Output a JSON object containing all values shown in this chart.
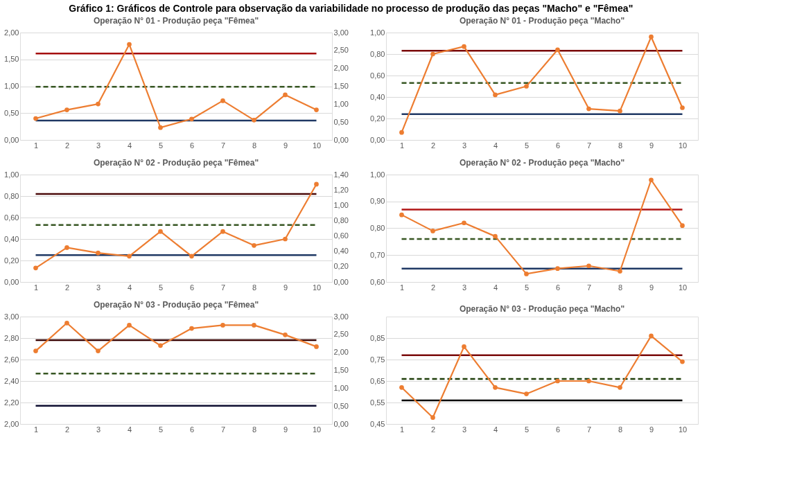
{
  "chart_data": [
    {
      "type": "line",
      "title": "Operação N° 01 - Produção peça \"Fêmea\"",
      "annotations": [
        "Gráfico 1: Gráficos de Controle para observação da variabilidade no processo de produção das peças \"Macho\" e \"Fêmea\""
      ],
      "categories": [
        "1",
        "2",
        "3",
        "4",
        "5",
        "6",
        "7",
        "8",
        "9",
        "10"
      ],
      "series": [
        {
          "color": "#ed7d31",
          "values": [
            0.4,
            0.56,
            0.67,
            1.78,
            0.23,
            0.39,
            0.73,
            0.37,
            0.84,
            0.56
          ]
        }
      ],
      "marker": "circle",
      "grid": "y",
      "ylim": [
        0,
        2
      ],
      "yticks": [
        {
          "value": 0,
          "label": "0,00"
        },
        {
          "value": 0.5,
          "label": "0,50"
        },
        {
          "value": 1,
          "label": "1,00"
        },
        {
          "value": 1.5,
          "label": "1,50"
        },
        {
          "value": 2,
          "label": "2,00"
        }
      ],
      "y2lim": [
        0,
        3
      ],
      "y2ticks": [
        {
          "value": 0,
          "label": "0,00"
        },
        {
          "value": 0.5,
          "label": "0,50"
        },
        {
          "value": 1,
          "label": "1,00"
        },
        {
          "value": 1.5,
          "label": "1,50"
        },
        {
          "value": 2,
          "label": "2,00"
        },
        {
          "value": 2.5,
          "label": "2,50"
        },
        {
          "value": 3,
          "label": "3,00"
        }
      ],
      "ref_lines": [
        {
          "axis": "y",
          "value": 1.61,
          "color": "#a50f0f",
          "line_style": "solid"
        },
        {
          "axis": "y",
          "value": 0.99,
          "color": "#375623",
          "line_style": "dashed"
        },
        {
          "axis": "y",
          "value": 0.36,
          "color": "#1f3864",
          "line_style": "solid"
        }
      ]
    },
    {
      "type": "line",
      "title": "Operação N° 01 - Produção peça \"Macho\"",
      "categories": [
        "1",
        "2",
        "3",
        "4",
        "5",
        "6",
        "7",
        "8",
        "9",
        "10"
      ],
      "series": [
        {
          "color": "#ed7d31",
          "values": [
            0.07,
            0.8,
            0.87,
            0.42,
            0.5,
            0.84,
            0.29,
            0.27,
            0.96,
            0.3
          ]
        }
      ],
      "marker": "circle",
      "grid": "y",
      "ylim": [
        0,
        1
      ],
      "yticks": [
        {
          "value": 0,
          "label": "0,00"
        },
        {
          "value": 0.2,
          "label": "0,20"
        },
        {
          "value": 0.4,
          "label": "0,40"
        },
        {
          "value": 0.6,
          "label": "0,60"
        },
        {
          "value": 0.8,
          "label": "0,80"
        },
        {
          "value": 1,
          "label": "1,00"
        }
      ],
      "ref_lines": [
        {
          "axis": "y",
          "value": 0.83,
          "color": "#7a0a0a",
          "line_style": "solid"
        },
        {
          "axis": "y",
          "value": 0.53,
          "color": "#375623",
          "line_style": "dashed"
        },
        {
          "axis": "y",
          "value": 0.24,
          "color": "#1f3864",
          "line_style": "solid"
        }
      ]
    },
    {
      "type": "line",
      "title": "Operação N° 02 - Produção peça \"Fêmea\"",
      "categories": [
        "1",
        "2",
        "3",
        "4",
        "5",
        "6",
        "7",
        "8",
        "9",
        "10"
      ],
      "series": [
        {
          "color": "#ed7d31",
          "values": [
            0.13,
            0.32,
            0.27,
            0.24,
            0.47,
            0.24,
            0.47,
            0.34,
            0.4,
            0.91
          ]
        }
      ],
      "marker": "circle",
      "grid": "y",
      "ylim": [
        0,
        1
      ],
      "yticks": [
        {
          "value": 0,
          "label": "0,00"
        },
        {
          "value": 0.2,
          "label": "0,20"
        },
        {
          "value": 0.4,
          "label": "0,40"
        },
        {
          "value": 0.6,
          "label": "0,60"
        },
        {
          "value": 0.8,
          "label": "0,80"
        },
        {
          "value": 1,
          "label": "1,00"
        }
      ],
      "y2lim": [
        0,
        1.4
      ],
      "y2ticks": [
        {
          "value": 0,
          "label": "0,00"
        },
        {
          "value": 0.2,
          "label": "0,20"
        },
        {
          "value": 0.4,
          "label": "0,40"
        },
        {
          "value": 0.6,
          "label": "0,60"
        },
        {
          "value": 0.8,
          "label": "0,80"
        },
        {
          "value": 1,
          "label": "1,00"
        },
        {
          "value": 1.2,
          "label": "1,20"
        },
        {
          "value": 1.4,
          "label": "1,40"
        }
      ],
      "ref_lines": [
        {
          "axis": "y",
          "value": 0.82,
          "color": "#4a0a0a",
          "line_style": "solid"
        },
        {
          "axis": "y",
          "value": 0.53,
          "color": "#375623",
          "line_style": "dashed"
        },
        {
          "axis": "y",
          "value": 0.25,
          "color": "#1f3864",
          "line_style": "solid"
        }
      ]
    },
    {
      "type": "line",
      "title": "Operação N° 02 - Produção peça \"Macho\"",
      "categories": [
        "1",
        "2",
        "3",
        "4",
        "5",
        "6",
        "7",
        "8",
        "9",
        "10"
      ],
      "series": [
        {
          "color": "#ed7d31",
          "values": [
            0.85,
            0.79,
            0.82,
            0.77,
            0.63,
            0.65,
            0.66,
            0.64,
            0.98,
            0.81
          ]
        }
      ],
      "marker": "circle",
      "grid": "y",
      "ylim": [
        0.6,
        1
      ],
      "yticks": [
        {
          "value": 0.6,
          "label": "0,60"
        },
        {
          "value": 0.7,
          "label": "0,70"
        },
        {
          "value": 0.8,
          "label": "0,80"
        },
        {
          "value": 0.9,
          "label": "0,90"
        },
        {
          "value": 1,
          "label": "1,00"
        }
      ],
      "ref_lines": [
        {
          "axis": "y",
          "value": 0.87,
          "color": "#b01515",
          "line_style": "solid"
        },
        {
          "axis": "y",
          "value": 0.76,
          "color": "#375623",
          "line_style": "dashed"
        },
        {
          "axis": "y",
          "value": 0.65,
          "color": "#1f3864",
          "line_style": "solid"
        }
      ]
    },
    {
      "type": "line",
      "title": "Operação N° 03 - Produção peça \"Fêmea\"",
      "categories": [
        "1",
        "2",
        "3",
        "4",
        "5",
        "6",
        "7",
        "8",
        "9",
        "10"
      ],
      "series": [
        {
          "color": "#ed7d31",
          "values": [
            2.68,
            2.94,
            2.68,
            2.92,
            2.73,
            2.89,
            2.92,
            2.92,
            2.83,
            2.72
          ]
        }
      ],
      "marker": "circle",
      "grid": "y",
      "ylim": [
        2,
        3
      ],
      "yticks": [
        {
          "value": 2,
          "label": "2,00"
        },
        {
          "value": 2.2,
          "label": "2,20"
        },
        {
          "value": 2.4,
          "label": "2,40"
        },
        {
          "value": 2.6,
          "label": "2,60"
        },
        {
          "value": 2.8,
          "label": "2,80"
        },
        {
          "value": 3,
          "label": "3,00"
        }
      ],
      "y2lim": [
        0,
        3
      ],
      "y2ticks": [
        {
          "value": 0,
          "label": "0,00"
        },
        {
          "value": 0.5,
          "label": "0,50"
        },
        {
          "value": 1,
          "label": "1,00"
        },
        {
          "value": 1.5,
          "label": "1,50"
        },
        {
          "value": 2,
          "label": "2,00"
        },
        {
          "value": 2.5,
          "label": "2,50"
        },
        {
          "value": 3,
          "label": "3,00"
        }
      ],
      "ref_lines": [
        {
          "axis": "y",
          "value": 2.78,
          "color": "#3a0505",
          "line_style": "solid"
        },
        {
          "axis": "y",
          "value": 2.47,
          "color": "#375623",
          "line_style": "dashed"
        },
        {
          "axis": "y",
          "value": 2.17,
          "color": "#0d0d30",
          "line_style": "solid"
        }
      ]
    },
    {
      "type": "line",
      "title": "Operação N° 03 - Produção peça \"Macho\"",
      "categories": [
        "1",
        "2",
        "3",
        "4",
        "5",
        "6",
        "7",
        "8",
        "9",
        "10"
      ],
      "series": [
        {
          "color": "#ed7d31",
          "values": [
            0.62,
            0.48,
            0.81,
            0.62,
            0.59,
            0.65,
            0.65,
            0.62,
            0.86,
            0.74
          ]
        }
      ],
      "marker": "circle",
      "grid": "y",
      "ylim": [
        0.45,
        0.95
      ],
      "yticks": [
        {
          "value": 0.45,
          "label": "0,45"
        },
        {
          "value": 0.55,
          "label": "0,55"
        },
        {
          "value": 0.65,
          "label": "0,65"
        },
        {
          "value": 0.75,
          "label": "0,75"
        },
        {
          "value": 0.85,
          "label": "0,85"
        }
      ],
      "ref_lines": [
        {
          "axis": "y",
          "value": 0.77,
          "color": "#7a0a0a",
          "line_style": "solid"
        },
        {
          "axis": "y",
          "value": 0.66,
          "color": "#1e3d0a",
          "line_style": "dashed"
        },
        {
          "axis": "y",
          "value": 0.56,
          "color": "#000000",
          "line_style": "solid"
        }
      ]
    }
  ]
}
